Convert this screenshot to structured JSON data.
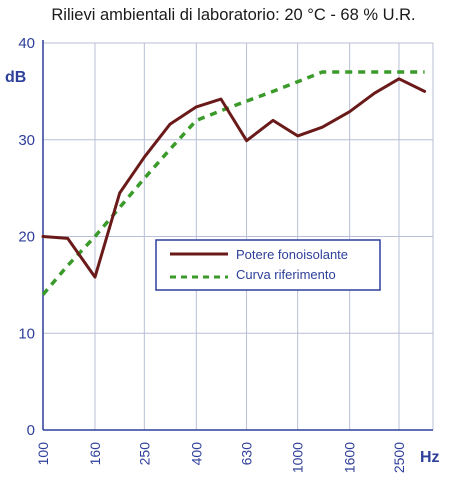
{
  "chart_data": {
    "type": "line",
    "title": "Rilievi ambientali di laboratorio: 20 °C - 68 % U.R.",
    "ylabel": "dB",
    "xlabel": "Hz",
    "ylim": [
      0,
      40
    ],
    "yticks": [
      0,
      10,
      20,
      30,
      40
    ],
    "x_scale": "log",
    "x_tick_labels": [
      "100",
      "160",
      "250",
      "400",
      "630",
      "1000",
      "1600",
      "2500"
    ],
    "x_tick_values": [
      100,
      160,
      250,
      400,
      630,
      1000,
      1600,
      2500
    ],
    "grid": true,
    "legend_position": "center-right",
    "series": [
      {
        "name": "Potere fonoisolante",
        "color": "#6b1a1a",
        "style": "solid",
        "x": [
          100,
          125,
          160,
          200,
          250,
          315,
          400,
          500,
          630,
          800,
          1000,
          1250,
          1600,
          2000,
          2500,
          3150
        ],
        "values": [
          20,
          19.8,
          15.8,
          24.5,
          28.2,
          31.6,
          33.4,
          34.2,
          29.9,
          32,
          30.4,
          31.3,
          32.9,
          34.8,
          36.3,
          35
        ]
      },
      {
        "name": "Curva riferimento",
        "color": "#3a9a2a",
        "style": "dashed",
        "x": [
          100,
          125,
          160,
          200,
          250,
          315,
          400,
          500,
          630,
          800,
          1000,
          1250,
          1600,
          2000,
          2500,
          3150
        ],
        "values": [
          14,
          17,
          20,
          23,
          26,
          29,
          32,
          33,
          34,
          35,
          36,
          37,
          37,
          37,
          37,
          37
        ]
      }
    ]
  }
}
